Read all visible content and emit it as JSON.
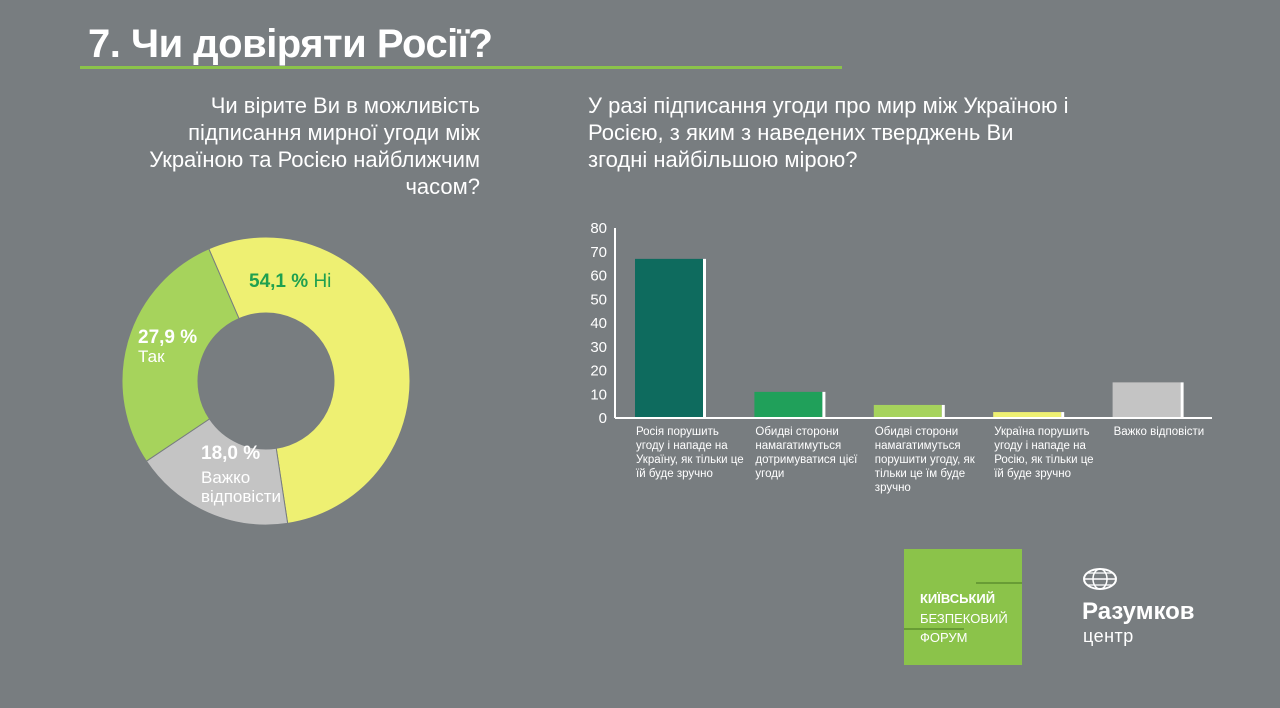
{
  "header": {
    "title": "7. Чи довіряти Росії?"
  },
  "left_question": "Чи вірите Ви в можливість підписання мирної угоди між Україною та Росією найближчим часом?",
  "right_question": "У разі підписання угоди про мир між Україною і Росією, з яким з наведених тверджень Ви згодні найбільшою мірою?",
  "colors": {
    "background": "#787d80",
    "accent_green": "#8bc34a",
    "yes": "#a6d35c",
    "no": "#eef072",
    "hard": "#c4c4c4",
    "label_no": "#1fa04f"
  },
  "chart_data": [
    {
      "type": "pie",
      "donut": true,
      "slices": [
        {
          "name": "Ні",
          "pct_text": "54,1 %",
          "value": 54.1,
          "color": "#eef072"
        },
        {
          "name": "Важко відповісти",
          "pct_text": "18,0 %",
          "value": 18.0,
          "color": "#c4c4c4"
        },
        {
          "name": "Так",
          "pct_text": "27,9 %",
          "value": 27.9,
          "color": "#a6d35c"
        }
      ]
    },
    {
      "type": "bar",
      "ylim": [
        0,
        80
      ],
      "yticks": [
        "0",
        "10",
        "20",
        "30",
        "40",
        "50",
        "60",
        "70",
        "80"
      ],
      "categories": [
        "Росія порушить угоду і нападе на Україну, як тільки це їй буде зручно",
        "Обидві сторони намагатимуться дотримуватися цієї угоди",
        "Обидві сторони намагатимуться порушити угоду, як тільки це їм буде зручно",
        "Україна порушить угоду і нападе на Росію, як тільки це їй буде зручно",
        "Важко відповісти"
      ],
      "values": [
        67,
        11,
        5.5,
        2.5,
        15
      ],
      "colors": [
        "#0e6b5e",
        "#20a05a",
        "#a6d35c",
        "#eef072",
        "#c4c4c4"
      ]
    }
  ],
  "logos": {
    "forum_line1": "КИЇВСЬКИЙ",
    "forum_line2": "БЕЗПЕКОВИЙ",
    "forum_line3": "ФОРУМ",
    "razumkov_name": "Разумков",
    "razumkov_sub": "центр"
  }
}
